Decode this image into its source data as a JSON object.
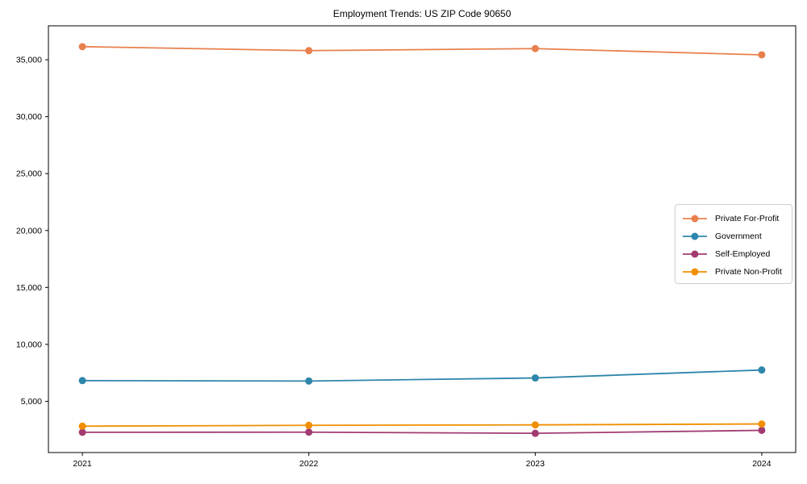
{
  "title": "Employment Trends: US ZIP Code 90650",
  "chart_data": {
    "type": "line",
    "title": "Employment Trends: US ZIP Code 90650",
    "xlabel": "",
    "ylabel": "",
    "x": [
      2021,
      2022,
      2023,
      2024
    ],
    "xtick_labels": [
      "2021",
      "2022",
      "2023",
      "2024"
    ],
    "yticks": [
      5000,
      10000,
      15000,
      20000,
      25000,
      30000,
      35000
    ],
    "ytick_labels": [
      "5,000",
      "10,000",
      "15,000",
      "20,000",
      "25,000",
      "30,000",
      "35,000"
    ],
    "xlim": [
      2020.85,
      2024.15
    ],
    "ylim": [
      500,
      37980
    ],
    "grid": false,
    "legend_position": "center right",
    "marker": "circle",
    "series": [
      {
        "name": "Private For-Profit",
        "color": "#E8804D",
        "values": [
          36150,
          35800,
          35980,
          35430
        ]
      },
      {
        "name": "Government",
        "color": "#2E86AB",
        "values": [
          6820,
          6780,
          7050,
          7750
        ]
      },
      {
        "name": "Self-Employed",
        "color": "#A23B72",
        "values": [
          2280,
          2290,
          2190,
          2450
        ]
      },
      {
        "name": "Private Non-Profit",
        "color": "#F18F01",
        "values": [
          2820,
          2890,
          2930,
          3010
        ]
      }
    ]
  }
}
